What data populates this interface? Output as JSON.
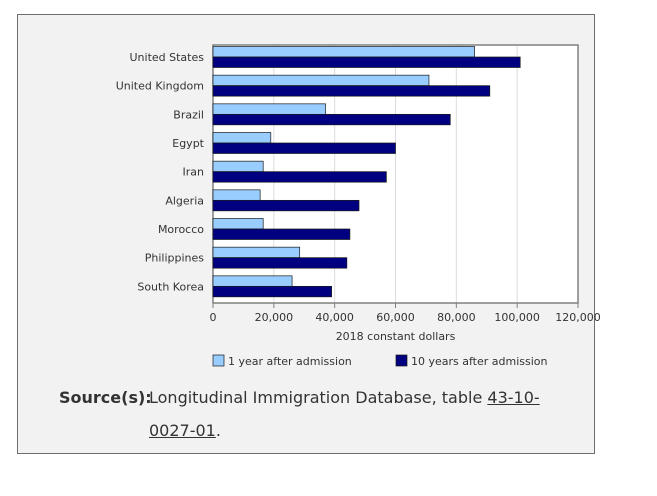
{
  "source": {
    "label": "Source(s):",
    "text": "Longitudinal Immigration Database, table ",
    "link_text": "43-10-0027-01",
    "suffix": "."
  },
  "chart_data": {
    "type": "bar",
    "orientation": "horizontal",
    "categories": [
      "United States",
      "United Kingdom",
      "Brazil",
      "Egypt",
      "Iran",
      "Algeria",
      "Morocco",
      "Philippines",
      "South Korea"
    ],
    "series": [
      {
        "name": "1 year after admission",
        "color": "#99ccff",
        "values": [
          86000,
          71000,
          37000,
          19000,
          16500,
          15500,
          16500,
          28500,
          26000
        ]
      },
      {
        "name": "10 years after admission",
        "color": "#000080",
        "values": [
          101000,
          91000,
          78000,
          60000,
          57000,
          48000,
          45000,
          44000,
          39000
        ]
      }
    ],
    "xlabel": "2018 constant dollars",
    "xlim": [
      0,
      120000
    ],
    "xticks": [
      0,
      20000,
      40000,
      60000,
      80000,
      100000,
      120000
    ],
    "xtick_labels": [
      "0",
      "20,000",
      "40,000",
      "60,000",
      "80,000",
      "100,000",
      "120,000"
    ],
    "grid": true,
    "legend_position": "bottom"
  }
}
